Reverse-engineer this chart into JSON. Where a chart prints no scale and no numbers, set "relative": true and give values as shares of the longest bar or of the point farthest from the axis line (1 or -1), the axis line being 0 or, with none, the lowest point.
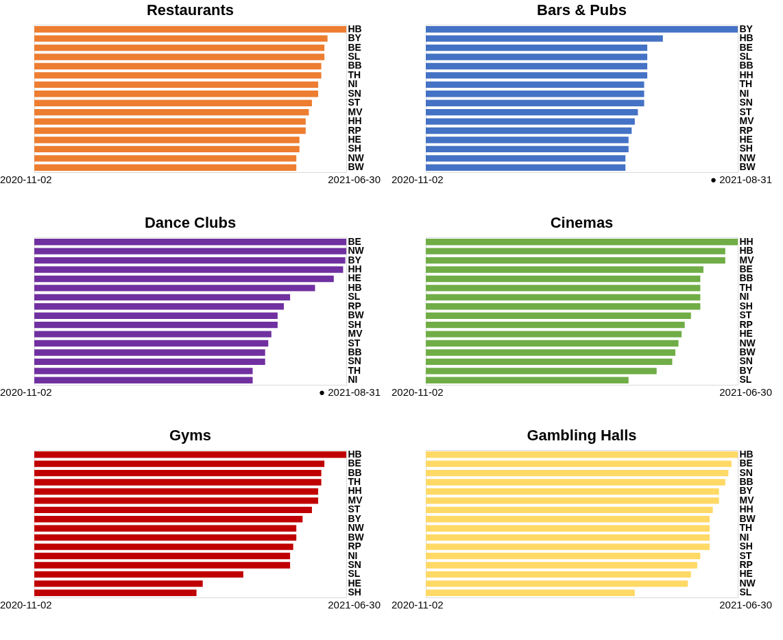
{
  "chart_data": [
    {
      "type": "bar",
      "orientation": "horizontal",
      "relative": true,
      "title": "Restaurants",
      "color": "#ed7d31",
      "annotations": [
        "2020-11-02",
        "2021-06-30"
      ],
      "categories": [
        "HB",
        "BY",
        "BE",
        "SL",
        "BB",
        "TH",
        "NI",
        "SN",
        "ST",
        "MV",
        "HH",
        "RP",
        "HE",
        "SH",
        "NW",
        "BW"
      ],
      "values": [
        1,
        0.94,
        0.93,
        0.93,
        0.92,
        0.92,
        0.91,
        0.91,
        0.89,
        0.88,
        0.87,
        0.87,
        0.85,
        0.85,
        0.84,
        0.84
      ]
    },
    {
      "type": "bar",
      "orientation": "horizontal",
      "relative": true,
      "title": "Bars & Pubs",
      "color": "#4472c4",
      "annotations": [
        "2020-11-02",
        "● 2021-08-31"
      ],
      "categories": [
        "BY",
        "HB",
        "BE",
        "SL",
        "BB",
        "HH",
        "TH",
        "NI",
        "SN",
        "ST",
        "MV",
        "RP",
        "HE",
        "SH",
        "NW",
        "BW"
      ],
      "values": [
        1,
        0.76,
        0.71,
        0.71,
        0.71,
        0.71,
        0.7,
        0.7,
        0.7,
        0.68,
        0.67,
        0.66,
        0.65,
        0.65,
        0.64,
        0.64
      ]
    },
    {
      "type": "bar",
      "orientation": "horizontal",
      "relative": true,
      "title": "Dance Clubs",
      "color": "#7030a0",
      "annotations": [
        "2020-11-02",
        "● 2021-08-31"
      ],
      "categories": [
        "BE",
        "NW",
        "BY",
        "HH",
        "HE",
        "HB",
        "SL",
        "RP",
        "BW",
        "SH",
        "MV",
        "ST",
        "BB",
        "SN",
        "TH",
        "NI"
      ],
      "values": [
        1,
        1,
        0.997,
        0.99,
        0.96,
        0.9,
        0.82,
        0.8,
        0.78,
        0.78,
        0.76,
        0.75,
        0.74,
        0.74,
        0.7,
        0.7
      ]
    },
    {
      "type": "bar",
      "orientation": "horizontal",
      "relative": true,
      "title": "Cinemas",
      "color": "#70ad47",
      "annotations": [
        "2020-11-02",
        "2021-06-30"
      ],
      "categories": [
        "HH",
        "HB",
        "MV",
        "BE",
        "BB",
        "TH",
        "NI",
        "SH",
        "ST",
        "RP",
        "HE",
        "NW",
        "BW",
        "SN",
        "BY",
        "SL"
      ],
      "values": [
        1,
        0.96,
        0.96,
        0.89,
        0.88,
        0.88,
        0.88,
        0.88,
        0.85,
        0.83,
        0.82,
        0.81,
        0.8,
        0.79,
        0.74,
        0.65
      ]
    },
    {
      "type": "bar",
      "orientation": "horizontal",
      "relative": true,
      "title": "Gyms",
      "color": "#c00000",
      "annotations": [
        "2020-11-02",
        "2021-06-30"
      ],
      "categories": [
        "HB",
        "BE",
        "BB",
        "TH",
        "HH",
        "MV",
        "ST",
        "BY",
        "NW",
        "BW",
        "RP",
        "NI",
        "SN",
        "SL",
        "HE",
        "SH"
      ],
      "values": [
        1,
        0.93,
        0.92,
        0.92,
        0.91,
        0.91,
        0.89,
        0.86,
        0.84,
        0.84,
        0.83,
        0.82,
        0.82,
        0.67,
        0.54,
        0.52
      ]
    },
    {
      "type": "bar",
      "orientation": "horizontal",
      "relative": true,
      "title": "Gambling Halls",
      "color": "#ffd966",
      "annotations": [
        "2020-11-02",
        "2021-06-30"
      ],
      "categories": [
        "HB",
        "BE",
        "SN",
        "BB",
        "BY",
        "MV",
        "HH",
        "BW",
        "TH",
        "NI",
        "SH",
        "ST",
        "RP",
        "HE",
        "NW",
        "SL"
      ],
      "values": [
        1,
        0.98,
        0.97,
        0.96,
        0.94,
        0.94,
        0.92,
        0.91,
        0.91,
        0.91,
        0.91,
        0.88,
        0.87,
        0.85,
        0.84,
        0.67
      ]
    }
  ]
}
